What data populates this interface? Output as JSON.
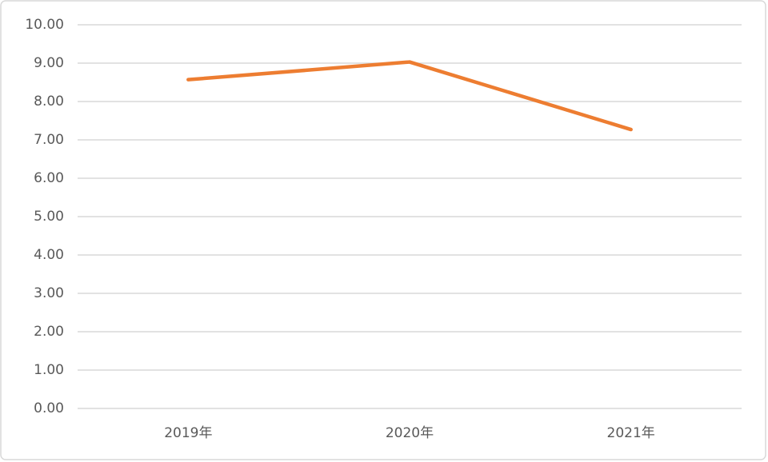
{
  "chart_data": {
    "type": "line",
    "categories": [
      "2019年",
      "2020年",
      "2021年"
    ],
    "series": [
      {
        "color": "#ed7d31",
        "values": [
          8.57,
          9.03,
          7.27
        ]
      }
    ],
    "ylim": [
      0,
      10
    ],
    "yticks": [
      {
        "value": 0,
        "label": "0.00"
      },
      {
        "value": 1,
        "label": "1.00"
      },
      {
        "value": 2,
        "label": "2.00"
      },
      {
        "value": 3,
        "label": "3.00"
      },
      {
        "value": 4,
        "label": "4.00"
      },
      {
        "value": 5,
        "label": "5.00"
      },
      {
        "value": 6,
        "label": "6.00"
      },
      {
        "value": 7,
        "label": "7.00"
      },
      {
        "value": 8,
        "label": "8.00"
      },
      {
        "value": 9,
        "label": "9.00"
      },
      {
        "value": 10,
        "label": "10.00"
      }
    ],
    "grid": true
  }
}
